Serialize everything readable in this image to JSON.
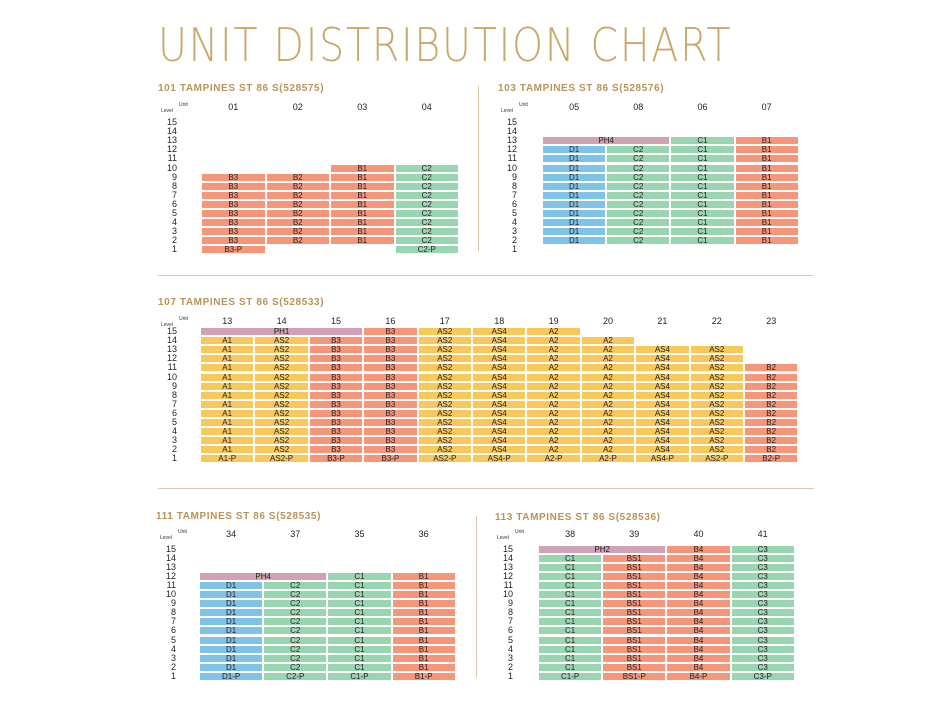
{
  "title": "UNIT DISTRIBUTION CHART",
  "colors": {
    "gold": "#c9a96b",
    "salmon": "#f5957a",
    "green": "#9ad5b1",
    "blue": "#7fc3e6",
    "yellow": "#f7c95a",
    "purple": "#cfa2b6"
  },
  "blocks": [
    {
      "id": "b101",
      "heading": "101 TAMPINES ST 86 S(528575)",
      "level_label": "Level",
      "unit_label": "Unit",
      "units": [
        "01",
        "02",
        "03",
        "04"
      ],
      "levels": [
        "15",
        "14",
        "13",
        "12",
        "11",
        "10",
        "9",
        "8",
        "7",
        "6",
        "5",
        "4",
        "3",
        "2",
        "1"
      ],
      "spans": [
        {
          "unit": 2,
          "from": 2,
          "to": 10,
          "label": "B1",
          "color": "salmon"
        },
        {
          "unit": 3,
          "from": 2,
          "to": 10,
          "label": "C2",
          "color": "green"
        }
      ],
      "cols": [
        {
          "unit": 0,
          "color": "salmon",
          "labels": {
            "9": "B3",
            "8": "B3",
            "7": "B3",
            "6": "B3",
            "5": "B3",
            "4": "B3",
            "3": "B3",
            "2": "B3",
            "1": "B3-P"
          }
        },
        {
          "unit": 1,
          "color": "salmon",
          "labels": {
            "9": "B2",
            "8": "B2",
            "7": "B2",
            "6": "B2",
            "5": "B2",
            "4": "B2",
            "3": "B2",
            "2": "B2"
          }
        },
        {
          "unit": 2,
          "color": "salmon",
          "labels": {
            "10": "B1",
            "9": "B1",
            "8": "B1",
            "7": "B1",
            "6": "B1",
            "5": "B1",
            "4": "B1",
            "3": "B1",
            "2": "B1"
          }
        },
        {
          "unit": 3,
          "color": "green",
          "labels": {
            "10": "C2",
            "9": "C2",
            "8": "C2",
            "7": "C2",
            "6": "C2",
            "5": "C2",
            "4": "C2",
            "3": "C2",
            "2": "C2",
            "1": "C2-P"
          }
        }
      ]
    },
    {
      "id": "b103",
      "heading": "103 TAMPINES ST 86 S(528576)",
      "level_label": "Level",
      "unit_label": "Unit",
      "units": [
        "05",
        "08",
        "06",
        "07"
      ],
      "levels": [
        "15",
        "14",
        "13",
        "12",
        "11",
        "10",
        "9",
        "8",
        "7",
        "6",
        "5",
        "4",
        "3",
        "2",
        "1"
      ],
      "ph": {
        "level": "13",
        "from_unit": 0,
        "to_unit": 1,
        "label": "PH4",
        "color": "purple"
      },
      "cols": [
        {
          "unit": 0,
          "color": "blue",
          "labels": {
            "12": "D1",
            "11": "D1",
            "10": "D1",
            "9": "D1",
            "8": "D1",
            "7": "D1",
            "6": "D1",
            "5": "D1",
            "4": "D1",
            "3": "D1",
            "2": "D1"
          }
        },
        {
          "unit": 1,
          "color": "green",
          "labels": {
            "12": "C2",
            "11": "C2",
            "10": "C2",
            "9": "C2",
            "8": "C2",
            "7": "C2",
            "6": "C2",
            "5": "C2",
            "4": "C2",
            "3": "C2",
            "2": "C2"
          }
        },
        {
          "unit": 2,
          "color": "green",
          "labels": {
            "13": "C1",
            "12": "C1",
            "11": "C1",
            "10": "C1",
            "9": "C1",
            "8": "C1",
            "7": "C1",
            "6": "C1",
            "5": "C1",
            "4": "C1",
            "3": "C1",
            "2": "C1"
          }
        },
        {
          "unit": 3,
          "color": "salmon",
          "labels": {
            "13": "B1",
            "12": "B1",
            "11": "B1",
            "10": "B1",
            "9": "B1",
            "8": "B1",
            "7": "B1",
            "6": "B1",
            "5": "B1",
            "4": "B1",
            "3": "B1",
            "2": "B1"
          }
        }
      ]
    },
    {
      "id": "b107",
      "heading": "107 TAMPINES ST 86 S(528533)",
      "level_label": "Level",
      "unit_label": "Unit",
      "units": [
        "13",
        "14",
        "15",
        "16",
        "17",
        "18",
        "19",
        "20",
        "21",
        "22",
        "23"
      ],
      "levels": [
        "15",
        "14",
        "13",
        "12",
        "11",
        "10",
        "9",
        "8",
        "7",
        "6",
        "5",
        "4",
        "3",
        "2",
        "1"
      ],
      "ph": {
        "level": "15",
        "from_unit": 0,
        "to_unit": 2,
        "label": "PH1",
        "color": "purple"
      },
      "cols": [
        {
          "unit": 0,
          "color": "yellow",
          "labels": {
            "14": "A1",
            "13": "A1",
            "12": "A1",
            "11": "A1",
            "10": "A1",
            "9": "A1",
            "8": "A1",
            "7": "A1",
            "6": "A1",
            "5": "A1",
            "4": "A1",
            "3": "A1",
            "2": "A1",
            "1": "A1-P"
          }
        },
        {
          "unit": 1,
          "color": "yellow",
          "labels": {
            "14": "AS2",
            "13": "AS2",
            "12": "AS2",
            "11": "AS2",
            "10": "AS2",
            "9": "AS2",
            "8": "AS2",
            "7": "AS2",
            "6": "AS2",
            "5": "AS2",
            "4": "AS2",
            "3": "AS2",
            "2": "AS2",
            "1": "AS2-P"
          }
        },
        {
          "unit": 2,
          "color": "salmon",
          "labels": {
            "14": "B3",
            "13": "B3",
            "12": "B3",
            "11": "B3",
            "10": "B3",
            "9": "B3",
            "8": "B3",
            "7": "B3",
            "6": "B3",
            "5": "B3",
            "4": "B3",
            "3": "B3",
            "2": "B3",
            "1": "B3-P"
          }
        },
        {
          "unit": 3,
          "color": "salmon",
          "labels": {
            "15": "B3",
            "14": "B3",
            "13": "B3",
            "12": "B3",
            "11": "B3",
            "10": "B3",
            "9": "B3",
            "8": "B3",
            "7": "B3",
            "6": "B3",
            "5": "B3",
            "4": "B3",
            "3": "B3",
            "2": "B3",
            "1": "B3-P"
          }
        },
        {
          "unit": 4,
          "color": "yellow",
          "labels": {
            "15": "AS2",
            "14": "AS2",
            "13": "AS2",
            "12": "AS2",
            "11": "AS2",
            "10": "AS2",
            "9": "AS2",
            "8": "AS2",
            "7": "AS2",
            "6": "AS2",
            "5": "AS2",
            "4": "AS2",
            "3": "AS2",
            "2": "AS2",
            "1": "AS2-P"
          }
        },
        {
          "unit": 5,
          "color": "yellow",
          "labels": {
            "15": "AS4",
            "14": "AS4",
            "13": "AS4",
            "12": "AS4",
            "11": "AS4",
            "10": "AS4",
            "9": "AS4",
            "8": "AS4",
            "7": "AS4",
            "6": "AS4",
            "5": "AS4",
            "4": "AS4",
            "3": "AS4",
            "2": "AS4",
            "1": "AS4-P"
          }
        },
        {
          "unit": 6,
          "color": "yellow",
          "labels": {
            "15": "A2",
            "14": "A2",
            "13": "A2",
            "12": "A2",
            "11": "A2",
            "10": "A2",
            "9": "A2",
            "8": "A2",
            "7": "A2",
            "6": "A2",
            "5": "A2",
            "4": "A2",
            "3": "A2",
            "2": "A2",
            "1": "A2-P"
          }
        },
        {
          "unit": 7,
          "color": "yellow",
          "labels": {
            "14": "A2",
            "13": "A2",
            "12": "A2",
            "11": "A2",
            "10": "A2",
            "9": "A2",
            "8": "A2",
            "7": "A2",
            "6": "A2",
            "5": "A2",
            "4": "A2",
            "3": "A2",
            "2": "A2",
            "1": "A2-P"
          }
        },
        {
          "unit": 8,
          "color": "yellow",
          "labels": {
            "13": "AS4",
            "12": "AS4",
            "11": "AS4",
            "10": "AS4",
            "9": "AS4",
            "8": "AS4",
            "7": "AS4",
            "6": "AS4",
            "5": "AS4",
            "4": "AS4",
            "3": "AS4",
            "2": "AS4",
            "1": "AS4-P"
          }
        },
        {
          "unit": 9,
          "color": "yellow",
          "labels": {
            "13": "AS2",
            "12": "AS2",
            "11": "AS2",
            "10": "AS2",
            "9": "AS2",
            "8": "AS2",
            "7": "AS2",
            "6": "AS2",
            "5": "AS2",
            "4": "AS2",
            "3": "AS2",
            "2": "AS2",
            "1": "AS2-P"
          }
        },
        {
          "unit": 10,
          "color": "salmon",
          "labels": {
            "11": "B2",
            "10": "B2",
            "9": "B2",
            "8": "B2",
            "7": "B2",
            "6": "B2",
            "5": "B2",
            "4": "B2",
            "3": "B2",
            "2": "B2",
            "1": "B2-P"
          }
        }
      ]
    },
    {
      "id": "b111",
      "heading": "111 TAMPINES ST 86 S(528535)",
      "level_label": "Level",
      "unit_label": "Unit",
      "units": [
        "34",
        "37",
        "35",
        "36"
      ],
      "levels": [
        "15",
        "14",
        "13",
        "12",
        "11",
        "10",
        "9",
        "8",
        "7",
        "6",
        "5",
        "4",
        "3",
        "2",
        "1"
      ],
      "ph": {
        "level": "12",
        "from_unit": 0,
        "to_unit": 1,
        "label": "PH4",
        "color": "purple"
      },
      "cols": [
        {
          "unit": 0,
          "color": "blue",
          "labels": {
            "11": "D1",
            "10": "D1",
            "9": "D1",
            "8": "D1",
            "7": "D1",
            "6": "D1",
            "5": "D1",
            "4": "D1",
            "3": "D1",
            "2": "D1",
            "1": "D1-P"
          }
        },
        {
          "unit": 1,
          "color": "green",
          "labels": {
            "11": "C2",
            "10": "C2",
            "9": "C2",
            "8": "C2",
            "7": "C2",
            "6": "C2",
            "5": "C2",
            "4": "C2",
            "3": "C2",
            "2": "C2",
            "1": "C2-P"
          }
        },
        {
          "unit": 2,
          "color": "green",
          "labels": {
            "12": "C1",
            "11": "C1",
            "10": "C1",
            "9": "C1",
            "8": "C1",
            "7": "C1",
            "6": "C1",
            "5": "C1",
            "4": "C1",
            "3": "C1",
            "2": "C1",
            "1": "C1-P"
          }
        },
        {
          "unit": 3,
          "color": "salmon",
          "labels": {
            "12": "B1",
            "11": "B1",
            "10": "B1",
            "9": "B1",
            "8": "B1",
            "7": "B1",
            "6": "B1",
            "5": "B1",
            "4": "B1",
            "3": "B1",
            "2": "B1",
            "1": "B1-P"
          }
        }
      ]
    },
    {
      "id": "b113",
      "heading": "113 TAMPINES ST 86 S(528536)",
      "level_label": "Level",
      "unit_label": "Unit",
      "units": [
        "38",
        "39",
        "40",
        "41"
      ],
      "levels": [
        "15",
        "14",
        "13",
        "12",
        "11",
        "10",
        "9",
        "8",
        "7",
        "6",
        "5",
        "4",
        "3",
        "2",
        "1"
      ],
      "ph": {
        "level": "15",
        "from_unit": 0,
        "to_unit": 1,
        "label": "PH2",
        "color": "purple"
      },
      "cols": [
        {
          "unit": 0,
          "color": "green",
          "labels": {
            "14": "C1",
            "13": "C1",
            "12": "C1",
            "11": "C1",
            "10": "C1",
            "9": "C1",
            "8": "C1",
            "7": "C1",
            "6": "C1",
            "5": "C1",
            "4": "C1",
            "3": "C1",
            "2": "C1",
            "1": "C1-P"
          }
        },
        {
          "unit": 1,
          "color": "salmon",
          "labels": {
            "14": "BS1",
            "13": "BS1",
            "12": "BS1",
            "11": "BS1",
            "10": "BS1",
            "9": "BS1",
            "8": "BS1",
            "7": "BS1",
            "6": "BS1",
            "5": "BS1",
            "4": "BS1",
            "3": "BS1",
            "2": "BS1",
            "1": "BS1-P"
          }
        },
        {
          "unit": 2,
          "color": "salmon",
          "labels": {
            "15": "B4",
            "14": "B4",
            "13": "B4",
            "12": "B4",
            "11": "B4",
            "10": "B4",
            "9": "B4",
            "8": "B4",
            "7": "B4",
            "6": "B4",
            "5": "B4",
            "4": "B4",
            "3": "B4",
            "2": "B4",
            "1": "B4-P"
          }
        },
        {
          "unit": 3,
          "color": "green",
          "labels": {
            "15": "C3",
            "14": "C3",
            "13": "C3",
            "12": "C3",
            "11": "C3",
            "10": "C3",
            "9": "C3",
            "8": "C3",
            "7": "C3",
            "6": "C3",
            "5": "C3",
            "4": "C3",
            "3": "C3",
            "2": "C3",
            "1": "C3-P"
          }
        }
      ]
    }
  ]
}
